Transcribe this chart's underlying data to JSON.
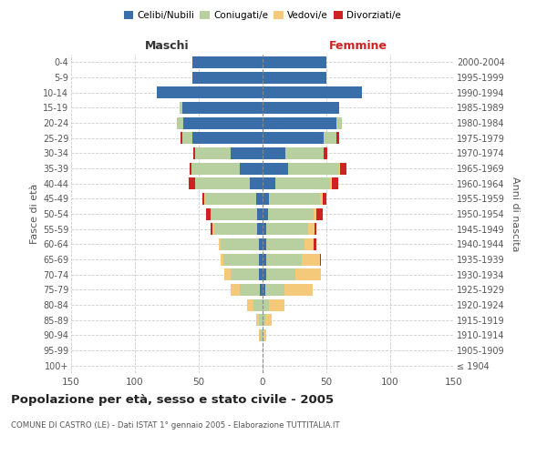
{
  "age_groups": [
    "100+",
    "95-99",
    "90-94",
    "85-89",
    "80-84",
    "75-79",
    "70-74",
    "65-69",
    "60-64",
    "55-59",
    "50-54",
    "45-49",
    "40-44",
    "35-39",
    "30-34",
    "25-29",
    "20-24",
    "15-19",
    "10-14",
    "5-9",
    "0-4"
  ],
  "anni_nascita": [
    "≤ 1904",
    "1905-1909",
    "1910-1914",
    "1915-1919",
    "1920-1924",
    "1925-1929",
    "1930-1934",
    "1935-1939",
    "1940-1944",
    "1945-1949",
    "1950-1954",
    "1955-1959",
    "1960-1964",
    "1965-1969",
    "1970-1974",
    "1975-1979",
    "1980-1984",
    "1985-1989",
    "1990-1994",
    "1995-1999",
    "2000-2004"
  ],
  "m_celibi": [
    0,
    0,
    0,
    0,
    0,
    2,
    3,
    3,
    3,
    4,
    4,
    5,
    10,
    18,
    25,
    55,
    62,
    63,
    83,
    55,
    55
  ],
  "m_coniugati": [
    0,
    0,
    2,
    3,
    7,
    16,
    22,
    28,
    30,
    34,
    37,
    40,
    43,
    38,
    28,
    8,
    5,
    2,
    0,
    0,
    0
  ],
  "m_vedovi": [
    0,
    0,
    1,
    2,
    5,
    7,
    5,
    2,
    1,
    1,
    0,
    1,
    0,
    0,
    0,
    0,
    0,
    0,
    0,
    0,
    0
  ],
  "m_divorziati": [
    0,
    0,
    0,
    0,
    0,
    0,
    0,
    0,
    0,
    2,
    3,
    1,
    5,
    1,
    1,
    1,
    0,
    0,
    0,
    0,
    0
  ],
  "f_nubili": [
    0,
    0,
    0,
    0,
    0,
    2,
    3,
    3,
    3,
    3,
    4,
    5,
    10,
    20,
    18,
    48,
    58,
    60,
    78,
    50,
    50
  ],
  "f_coniugate": [
    0,
    0,
    1,
    2,
    5,
    15,
    23,
    28,
    30,
    33,
    36,
    40,
    43,
    40,
    30,
    10,
    4,
    0,
    0,
    0,
    0
  ],
  "f_vedove": [
    0,
    0,
    2,
    5,
    12,
    22,
    20,
    14,
    7,
    5,
    2,
    2,
    1,
    1,
    0,
    0,
    0,
    0,
    0,
    0,
    0
  ],
  "f_divorziate": [
    0,
    0,
    0,
    0,
    0,
    0,
    0,
    1,
    2,
    1,
    5,
    3,
    5,
    5,
    3,
    2,
    0,
    0,
    0,
    0,
    0
  ],
  "colors": {
    "celibi": "#3a6ea8",
    "coniugati": "#b8cfa0",
    "vedovi": "#f5c97a",
    "divorziati": "#cc2222"
  },
  "xlim": 150,
  "title": "Popolazione per età, sesso e stato civile - 2005",
  "subtitle": "COMUNE DI CASTRO (LE) - Dati ISTAT 1° gennaio 2005 - Elaborazione TUTTITALIA.IT",
  "ylabel_left": "Fasce di età",
  "ylabel_right": "Anni di nascita",
  "xlabel_left": "Maschi",
  "xlabel_right": "Femmine",
  "legend": [
    "Celibi/Nubili",
    "Coniugati/e",
    "Vedovi/e",
    "Divorziati/e"
  ],
  "background_color": "#ffffff",
  "grid_color": "#cccccc"
}
